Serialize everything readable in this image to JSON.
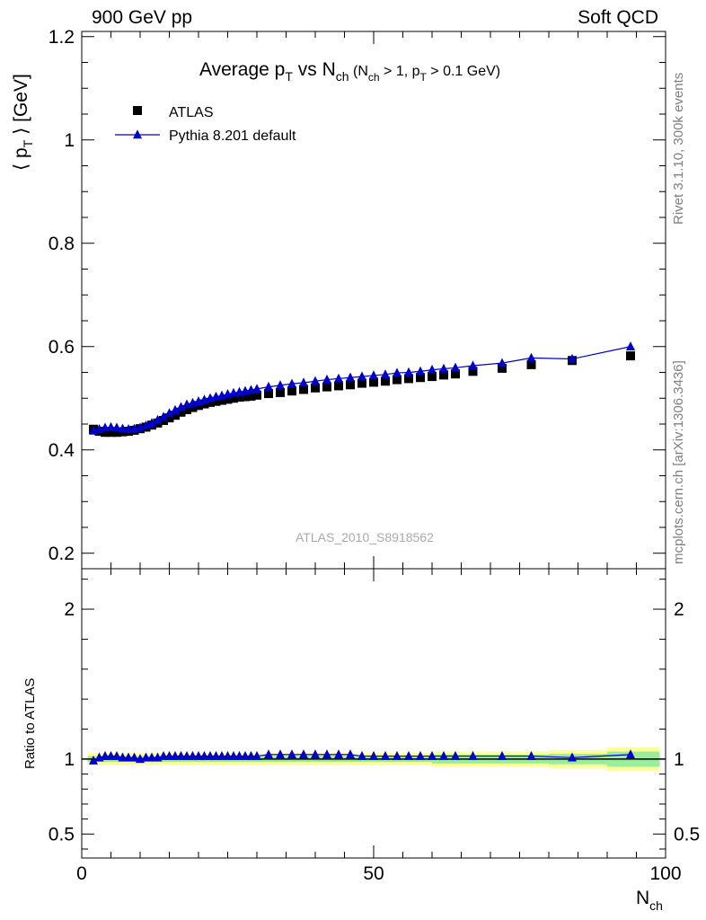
{
  "header": {
    "left": "900 GeV pp",
    "right": "Soft QCD"
  },
  "side_labels": {
    "rivet": "Rivet 3.1.10,  300k events",
    "mcplots": "mcplots.cern.ch [arXiv:1306.3436]"
  },
  "watermark": "ATLAS_2010_S8918562",
  "chart_data": [
    {
      "type": "scatter",
      "panel": "main",
      "title": "Average p_T vs N_ch (N_ch > 1, p_T > 0.1 GeV)",
      "ylabel": "⟨ p_T ⟩ [GeV]",
      "xlim": [
        0,
        100
      ],
      "ylim": [
        0.17,
        1.21
      ],
      "yticks": [
        0.2,
        0.4,
        0.6,
        0.8,
        1,
        1.2
      ],
      "ytick_labels": [
        "0.2",
        "0.4",
        "0.6",
        "0.8",
        "1",
        "1.2"
      ],
      "legend_position": "top-left",
      "series": [
        {
          "name": "ATLAS",
          "marker": "square",
          "color": "#000000",
          "x": [
            2,
            3,
            4,
            5,
            6,
            7,
            8,
            9,
            10,
            11,
            12,
            13,
            14,
            15,
            16,
            17,
            18,
            19,
            20,
            21,
            22,
            23,
            24,
            25,
            26,
            27,
            28,
            29,
            30,
            32,
            34,
            36,
            38,
            40,
            42,
            44,
            46,
            48,
            50,
            52,
            54,
            56,
            58,
            60,
            62,
            64,
            67,
            72,
            77,
            84,
            94
          ],
          "y": [
            0.44,
            0.436,
            0.434,
            0.434,
            0.434,
            0.435,
            0.436,
            0.438,
            0.441,
            0.444,
            0.448,
            0.452,
            0.457,
            0.462,
            0.467,
            0.473,
            0.478,
            0.482,
            0.486,
            0.489,
            0.492,
            0.494,
            0.496,
            0.498,
            0.5,
            0.502,
            0.503,
            0.504,
            0.506,
            0.509,
            0.511,
            0.514,
            0.517,
            0.52,
            0.522,
            0.524,
            0.526,
            0.529,
            0.531,
            0.533,
            0.536,
            0.538,
            0.54,
            0.542,
            0.545,
            0.547,
            0.552,
            0.558,
            0.565,
            0.573,
            0.582
          ]
        },
        {
          "name": "Pythia 8.201 default",
          "marker": "triangle",
          "color": "#0000cc",
          "x": [
            2,
            3,
            4,
            5,
            6,
            7,
            8,
            9,
            10,
            11,
            12,
            13,
            14,
            15,
            16,
            17,
            18,
            19,
            20,
            21,
            22,
            23,
            24,
            25,
            26,
            27,
            28,
            29,
            30,
            32,
            34,
            36,
            38,
            40,
            42,
            44,
            46,
            48,
            50,
            52,
            54,
            56,
            58,
            60,
            62,
            64,
            67,
            72,
            77,
            84,
            94
          ],
          "y": [
            0.437,
            0.44,
            0.443,
            0.444,
            0.443,
            0.441,
            0.44,
            0.441,
            0.443,
            0.447,
            0.452,
            0.458,
            0.464,
            0.471,
            0.477,
            0.483,
            0.488,
            0.491,
            0.494,
            0.497,
            0.5,
            0.503,
            0.505,
            0.508,
            0.51,
            0.512,
            0.514,
            0.516,
            0.518,
            0.522,
            0.525,
            0.528,
            0.53,
            0.533,
            0.536,
            0.538,
            0.54,
            0.542,
            0.544,
            0.546,
            0.549,
            0.55,
            0.552,
            0.555,
            0.557,
            0.559,
            0.563,
            0.568,
            0.578,
            0.576,
            0.6
          ]
        }
      ]
    },
    {
      "type": "line",
      "panel": "ratio",
      "ylabel": "Ratio to ATLAS",
      "xlabel": "N_ch",
      "xlim": [
        0,
        100
      ],
      "ylim": [
        0.34,
        2.27
      ],
      "xticks": [
        0,
        50,
        100
      ],
      "xtick_labels": [
        "0",
        "50",
        "100"
      ],
      "yticks": [
        0.5,
        1,
        2
      ],
      "ytick_labels": [
        "0.5",
        "1",
        "2"
      ],
      "reference_line": 1,
      "band_outer_color": "#ffff99",
      "band_inner_color": "#99ee99",
      "series": [
        {
          "name": "Pythia 8.201 default",
          "marker": "triangle",
          "color": "#0000cc",
          "x": [
            2,
            3,
            4,
            5,
            6,
            7,
            8,
            9,
            10,
            11,
            12,
            13,
            14,
            15,
            16,
            17,
            18,
            19,
            20,
            21,
            22,
            23,
            24,
            25,
            26,
            27,
            28,
            29,
            30,
            32,
            34,
            36,
            38,
            40,
            42,
            44,
            46,
            48,
            50,
            52,
            54,
            56,
            58,
            60,
            62,
            64,
            67,
            72,
            77,
            84,
            94
          ],
          "y": [
            0.99,
            1.01,
            1.02,
            1.02,
            1.02,
            1.01,
            1.01,
            1.01,
            1.0,
            1.01,
            1.01,
            1.01,
            1.02,
            1.02,
            1.02,
            1.02,
            1.02,
            1.02,
            1.02,
            1.02,
            1.02,
            1.02,
            1.02,
            1.02,
            1.02,
            1.02,
            1.02,
            1.02,
            1.02,
            1.03,
            1.03,
            1.03,
            1.03,
            1.03,
            1.03,
            1.03,
            1.03,
            1.02,
            1.02,
            1.02,
            1.02,
            1.02,
            1.02,
            1.02,
            1.02,
            1.02,
            1.02,
            1.02,
            1.02,
            1.01,
            1.03
          ]
        }
      ],
      "band_x_edges": [
        1,
        30,
        60,
        80,
        90,
        99
      ],
      "band_inner_halfwidth": [
        0.02,
        0.02,
        0.03,
        0.035,
        0.05
      ],
      "band_outer_halfwidth": [
        0.04,
        0.04,
        0.05,
        0.06,
        0.08
      ]
    }
  ]
}
